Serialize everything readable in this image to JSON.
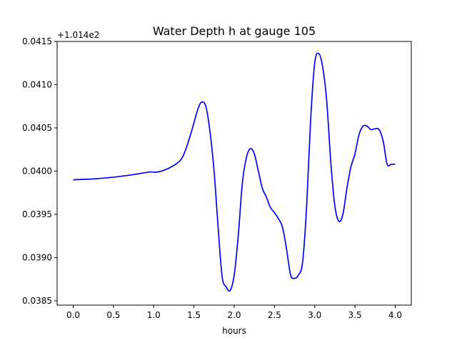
{
  "chart_data": {
    "type": "line",
    "title": "Water Depth h at gauge 105",
    "xlabel": "hours",
    "ylabel": "",
    "offset_label": "+1.014e2",
    "xlim": [
      -0.2,
      4.2
    ],
    "ylim": [
      0.03845,
      0.0415
    ],
    "xticks": [
      0.0,
      0.5,
      1.0,
      1.5,
      2.0,
      2.5,
      3.0,
      3.5,
      4.0
    ],
    "xtick_labels": [
      "0.0",
      "0.5",
      "1.0",
      "1.5",
      "2.0",
      "2.5",
      "3.0",
      "3.5",
      "4.0"
    ],
    "yticks": [
      0.0385,
      0.039,
      0.0395,
      0.04,
      0.0405,
      0.041,
      0.0415
    ],
    "ytick_labels": [
      "0.0385",
      "0.0390",
      "0.0395",
      "0.0400",
      "0.0405",
      "0.0410",
      "0.0415"
    ],
    "grid": false,
    "line_color": "#0000ff",
    "series": [
      {
        "x": [
          0.0,
          0.25,
          0.5,
          0.75,
          0.95,
          1.05,
          1.2,
          1.35,
          1.45,
          1.55,
          1.6,
          1.65,
          1.7,
          1.75,
          1.8,
          1.85,
          1.9,
          1.95,
          2.0,
          2.05,
          2.1,
          2.15,
          2.2,
          2.25,
          2.3,
          2.35,
          2.4,
          2.45,
          2.5,
          2.55,
          2.6,
          2.65,
          2.7,
          2.75,
          2.8,
          2.85,
          2.9,
          2.95,
          3.0,
          3.05,
          3.1,
          3.15,
          3.2,
          3.25,
          3.3,
          3.35,
          3.4,
          3.45,
          3.5,
          3.55,
          3.6,
          3.65,
          3.7,
          3.75,
          3.8,
          3.85,
          3.9,
          3.95,
          4.0
        ],
        "y": [
          0.0399,
          0.03991,
          0.03993,
          0.03996,
          0.03999,
          0.03999,
          0.04004,
          0.04015,
          0.0404,
          0.04072,
          0.0408,
          0.04074,
          0.04045,
          0.04,
          0.03935,
          0.03878,
          0.03866,
          0.03862,
          0.0388,
          0.03925,
          0.03985,
          0.04015,
          0.04026,
          0.0402,
          0.04,
          0.0398,
          0.0397,
          0.03958,
          0.03952,
          0.03945,
          0.03935,
          0.0391,
          0.0388,
          0.03876,
          0.0388,
          0.03895,
          0.0396,
          0.0406,
          0.04125,
          0.04136,
          0.0412,
          0.0408,
          0.0401,
          0.0396,
          0.03942,
          0.0395,
          0.0398,
          0.04005,
          0.0402,
          0.04042,
          0.04052,
          0.04052,
          0.04048,
          0.04049,
          0.04048,
          0.04035,
          0.04008,
          0.04008,
          0.04008
        ]
      }
    ]
  }
}
